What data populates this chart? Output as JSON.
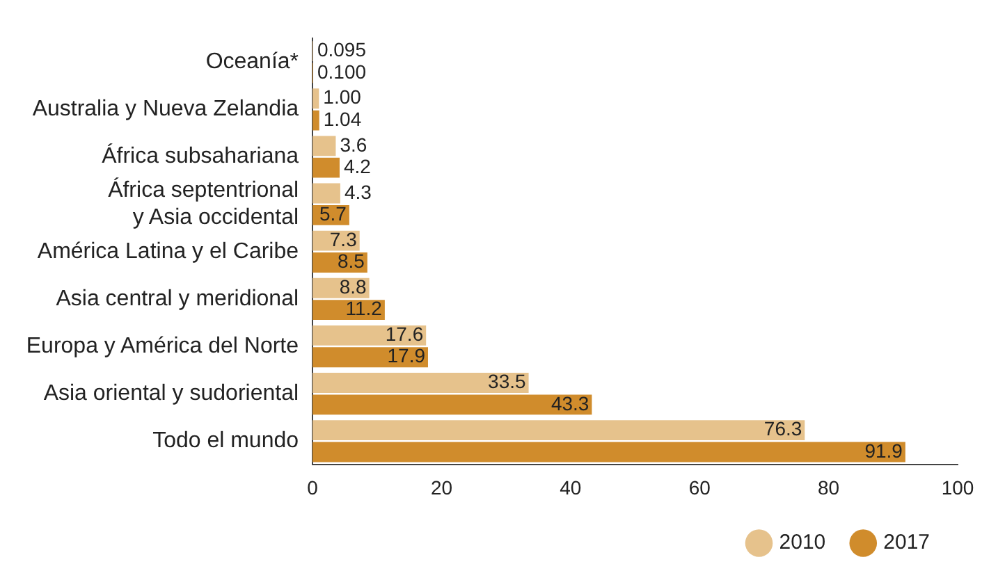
{
  "chart_data": {
    "type": "bar",
    "orientation": "horizontal",
    "categories": [
      "Oceanía*",
      "Australia y Nueva Zelandia",
      "África subsahariana",
      "África septentrional\ny Asia occidental",
      "América Latina y el Caribe",
      "Asia central y meridional",
      "Europa y América del Norte",
      "Asia oriental y sudoriental",
      "Todo el mundo"
    ],
    "series": [
      {
        "name": "2010",
        "color": "#e6c28c",
        "values": [
          0.095,
          1.0,
          3.6,
          4.3,
          7.3,
          8.8,
          17.6,
          33.5,
          76.3
        ],
        "value_labels": [
          "0.095",
          "1.00",
          "3.6",
          "4.3",
          "7.3",
          "8.8",
          "17.6",
          "33.5",
          "76.3"
        ]
      },
      {
        "name": "2017",
        "color": "#d08c2c",
        "values": [
          0.1,
          1.04,
          4.2,
          5.7,
          8.5,
          11.2,
          17.9,
          43.3,
          91.9
        ],
        "value_labels": [
          "0.100",
          "1.04",
          "4.2",
          "5.7",
          "8.5",
          "11.2",
          "17.9",
          "43.3",
          "91.9"
        ]
      }
    ],
    "xlim": [
      0,
      100
    ],
    "xticks": [
      0,
      20,
      40,
      60,
      80,
      100
    ],
    "grid": false,
    "legend": "bottom right"
  }
}
